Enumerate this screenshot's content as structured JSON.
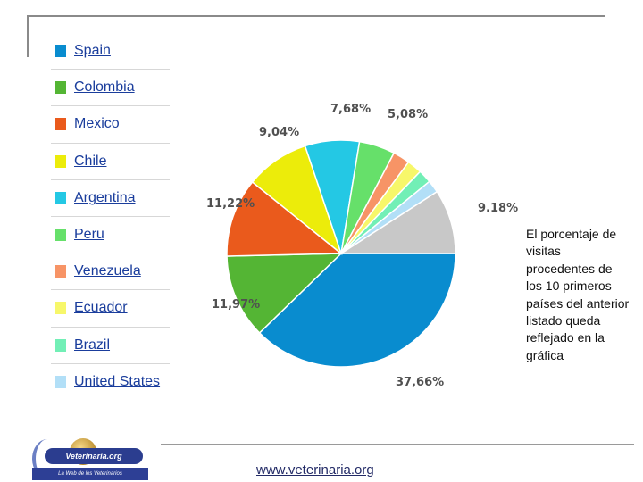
{
  "chart_data": {
    "type": "pie",
    "title": "",
    "legend_position": "left",
    "slices": [
      {
        "name": "Spain",
        "value": 37.66,
        "label": "37,66%",
        "color": "#098ccf"
      },
      {
        "name": "Colombia",
        "value": 11.97,
        "label": "11,97%",
        "color": "#54b534"
      },
      {
        "name": "Mexico",
        "value": 11.22,
        "label": "11,22%",
        "color": "#ea5a1c"
      },
      {
        "name": "Chile",
        "value": 9.04,
        "label": "9,04%",
        "color": "#ecec0a"
      },
      {
        "name": "Argentina",
        "value": 7.68,
        "label": "7,68%",
        "color": "#24c8e4"
      },
      {
        "name": "Peru",
        "value": 5.08,
        "label": "5,08%",
        "color": "#66e06a"
      },
      {
        "name": "Venezuela",
        "value": 2.4,
        "label": "",
        "color": "#f79466"
      },
      {
        "name": "Ecuador",
        "value": 2.1,
        "label": "",
        "color": "#f7f76a"
      },
      {
        "name": "Brazil",
        "value": 1.9,
        "label": "",
        "color": "#72efb6"
      },
      {
        "name": "United States",
        "value": 1.77,
        "label": "",
        "color": "#b2dff7"
      },
      {
        "name": "",
        "value": 9.18,
        "label": "9.18%",
        "color": "#c8c8c8"
      }
    ]
  },
  "note": "El porcentaje de visitas procedentes de los 10 primeros países del anterior listado queda reflejado en la gráfica",
  "logo": {
    "name": "Veterinaria.org",
    "tagline": "La Web de los Veterinarios"
  },
  "website": "www.veterinaria.org"
}
